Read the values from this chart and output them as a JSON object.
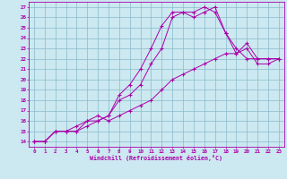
{
  "xlabel": "Windchill (Refroidissement éolien,°C)",
  "bg_color": "#cce8f0",
  "grid_color": "#88bbcc",
  "line_color": "#aa00aa",
  "xlim": [
    -0.5,
    23.5
  ],
  "ylim": [
    13.5,
    27.5
  ],
  "xticks": [
    0,
    1,
    2,
    3,
    4,
    5,
    6,
    7,
    8,
    9,
    10,
    11,
    12,
    13,
    14,
    15,
    16,
    17,
    18,
    19,
    20,
    21,
    22,
    23
  ],
  "yticks": [
    14,
    15,
    16,
    17,
    18,
    19,
    20,
    21,
    22,
    23,
    24,
    25,
    26,
    27
  ],
  "line1_x": [
    0,
    1,
    2,
    3,
    4,
    5,
    6,
    7,
    8,
    9,
    10,
    11,
    12,
    13,
    14,
    15,
    16,
    17,
    18,
    19,
    20,
    21,
    22,
    23
  ],
  "line1_y": [
    14,
    14,
    15,
    15,
    15,
    15.5,
    16,
    16.5,
    18.5,
    19.5,
    21,
    23,
    25.2,
    26.5,
    26.5,
    26.5,
    27,
    26.5,
    24.5,
    23,
    22,
    22,
    22,
    22
  ],
  "line2_x": [
    0,
    1,
    2,
    3,
    4,
    5,
    6,
    7,
    8,
    9,
    10,
    11,
    12,
    13,
    14,
    15,
    16,
    17,
    18,
    19,
    20,
    21,
    22,
    23
  ],
  "line2_y": [
    14,
    14,
    15,
    15,
    15.5,
    16,
    16,
    16.5,
    18,
    18.5,
    19.5,
    21.5,
    23,
    26,
    26.5,
    26,
    26.5,
    27,
    24.5,
    22.5,
    23.5,
    22,
    22,
    22
  ],
  "line3_x": [
    0,
    1,
    2,
    3,
    4,
    5,
    6,
    7,
    8,
    9,
    10,
    11,
    12,
    13,
    14,
    15,
    16,
    17,
    18,
    19,
    20,
    21,
    22,
    23
  ],
  "line3_y": [
    14,
    14,
    15,
    15,
    15,
    16,
    16.5,
    16,
    16.5,
    17,
    17.5,
    18,
    19,
    20,
    20.5,
    21,
    21.5,
    22,
    22.5,
    22.5,
    23,
    21.5,
    21.5,
    22
  ]
}
